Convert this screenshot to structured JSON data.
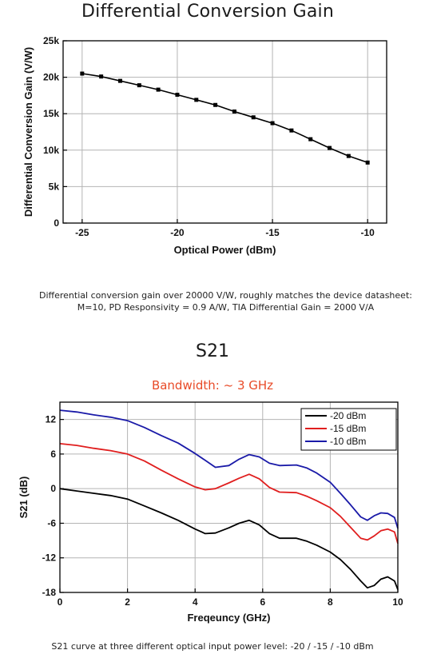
{
  "texts": {
    "chart1_title": "Differential Conversion Gain",
    "chart1_caption_line1": "Differential conversion gain over 20000 V/W, roughly matches the device datasheet:",
    "chart1_caption_line2": "M=10, PD Responsivity = 0.9 A/W, TIA Differential Gain = 2000 V/A",
    "chart2_title": "S21",
    "chart2_subtitle": "Bandwidth: ~ 3 GHz",
    "chart2_caption": "S21 curve at three different optical input power level: -20 / -15 / -10 dBm"
  },
  "chart_data": [
    {
      "type": "line",
      "title": "Differential Conversion Gain",
      "xlabel": "Optical Power (dBm)",
      "ylabel": "Differential Conversion Gain (V/W)",
      "xlim": [
        -26,
        -9
      ],
      "ylim": [
        0,
        25000
      ],
      "xticks": [
        -25,
        -20,
        -15,
        -10
      ],
      "xtick_labels": [
        "-25",
        "-20",
        "-15",
        "-10"
      ],
      "yticks": [
        0,
        5000,
        10000,
        15000,
        20000,
        25000
      ],
      "ytick_labels": [
        "0",
        "5k",
        "10k",
        "15k",
        "20k",
        "25k"
      ],
      "grid": true,
      "color": "#000000",
      "marker": "square",
      "series": [
        {
          "x": [
            -25,
            -24,
            -23,
            -22,
            -21,
            -20,
            -19,
            -18,
            -17,
            -16,
            -15,
            -14,
            -13,
            -12,
            -11,
            -10
          ],
          "y": [
            20500,
            20100,
            19500,
            18900,
            18300,
            17600,
            16900,
            16200,
            15300,
            14500,
            13700,
            12700,
            11500,
            10300,
            9200,
            8300
          ]
        }
      ]
    },
    {
      "type": "line",
      "title": "S21",
      "subtitle": "Bandwidth: ~ 3 GHz",
      "xlabel": "Freqeuncy (GHz)",
      "ylabel": "S21 (dB)",
      "xlim": [
        0,
        10
      ],
      "ylim": [
        -18,
        15
      ],
      "xticks": [
        0,
        2,
        4,
        6,
        8,
        10
      ],
      "xtick_labels": [
        "0",
        "2",
        "4",
        "6",
        "8",
        "10"
      ],
      "yticks": [
        -18,
        -12,
        -6,
        0,
        6,
        12
      ],
      "ytick_labels": [
        "-18",
        "-12",
        "-6",
        "0",
        "6",
        "12"
      ],
      "grid": true,
      "legend_position": "top-right",
      "series": [
        {
          "name": "-20 dBm",
          "color": "#000000",
          "x": [
            0,
            0.5,
            1,
            1.5,
            2,
            2.5,
            3,
            3.5,
            4,
            4.3,
            4.6,
            5,
            5.3,
            5.6,
            5.9,
            6.2,
            6.5,
            7,
            7.3,
            7.6,
            8,
            8.3,
            8.6,
            8.9,
            9.1,
            9.3,
            9.5,
            9.7,
            9.9,
            10
          ],
          "y": [
            0,
            -0.4,
            -0.8,
            -1.2,
            -1.8,
            -3,
            -4.2,
            -5.5,
            -7,
            -7.8,
            -7.7,
            -6.8,
            -6,
            -5.5,
            -6.3,
            -7.8,
            -8.6,
            -8.6,
            -9.1,
            -9.8,
            -11,
            -12.3,
            -14,
            -16,
            -17.2,
            -16.8,
            -15.7,
            -15.3,
            -16,
            -17.5
          ]
        },
        {
          "name": "-15 dBm",
          "color": "#e01e1e",
          "x": [
            0,
            0.5,
            1,
            1.5,
            2,
            2.5,
            3,
            3.5,
            4,
            4.3,
            4.6,
            5,
            5.3,
            5.6,
            5.9,
            6.2,
            6.5,
            7,
            7.3,
            7.6,
            8,
            8.3,
            8.6,
            8.9,
            9.1,
            9.3,
            9.5,
            9.7,
            9.9,
            10
          ],
          "y": [
            7.8,
            7.5,
            7,
            6.6,
            6,
            4.8,
            3.2,
            1.7,
            0.3,
            -0.2,
            0,
            1,
            1.8,
            2.5,
            1.7,
            0.2,
            -0.6,
            -0.7,
            -1.3,
            -2.1,
            -3.3,
            -4.8,
            -6.7,
            -8.6,
            -8.9,
            -8.2,
            -7.3,
            -7,
            -7.5,
            -9.5
          ]
        },
        {
          "name": "-10 dBm",
          "color": "#1a1aa8",
          "x": [
            0,
            0.5,
            1,
            1.5,
            2,
            2.5,
            3,
            3.5,
            4,
            4.3,
            4.6,
            5,
            5.3,
            5.6,
            5.9,
            6.2,
            6.5,
            7,
            7.3,
            7.6,
            8,
            8.3,
            8.6,
            8.9,
            9.1,
            9.3,
            9.5,
            9.7,
            9.9,
            10
          ],
          "y": [
            13.6,
            13.3,
            12.8,
            12.4,
            11.8,
            10.6,
            9.2,
            7.9,
            6.1,
            4.9,
            3.7,
            4,
            5.1,
            5.9,
            5.5,
            4.4,
            4,
            4.1,
            3.6,
            2.7,
            1.1,
            -0.8,
            -2.8,
            -4.9,
            -5.5,
            -4.7,
            -4.2,
            -4.3,
            -5,
            -6.9
          ]
        }
      ]
    }
  ]
}
